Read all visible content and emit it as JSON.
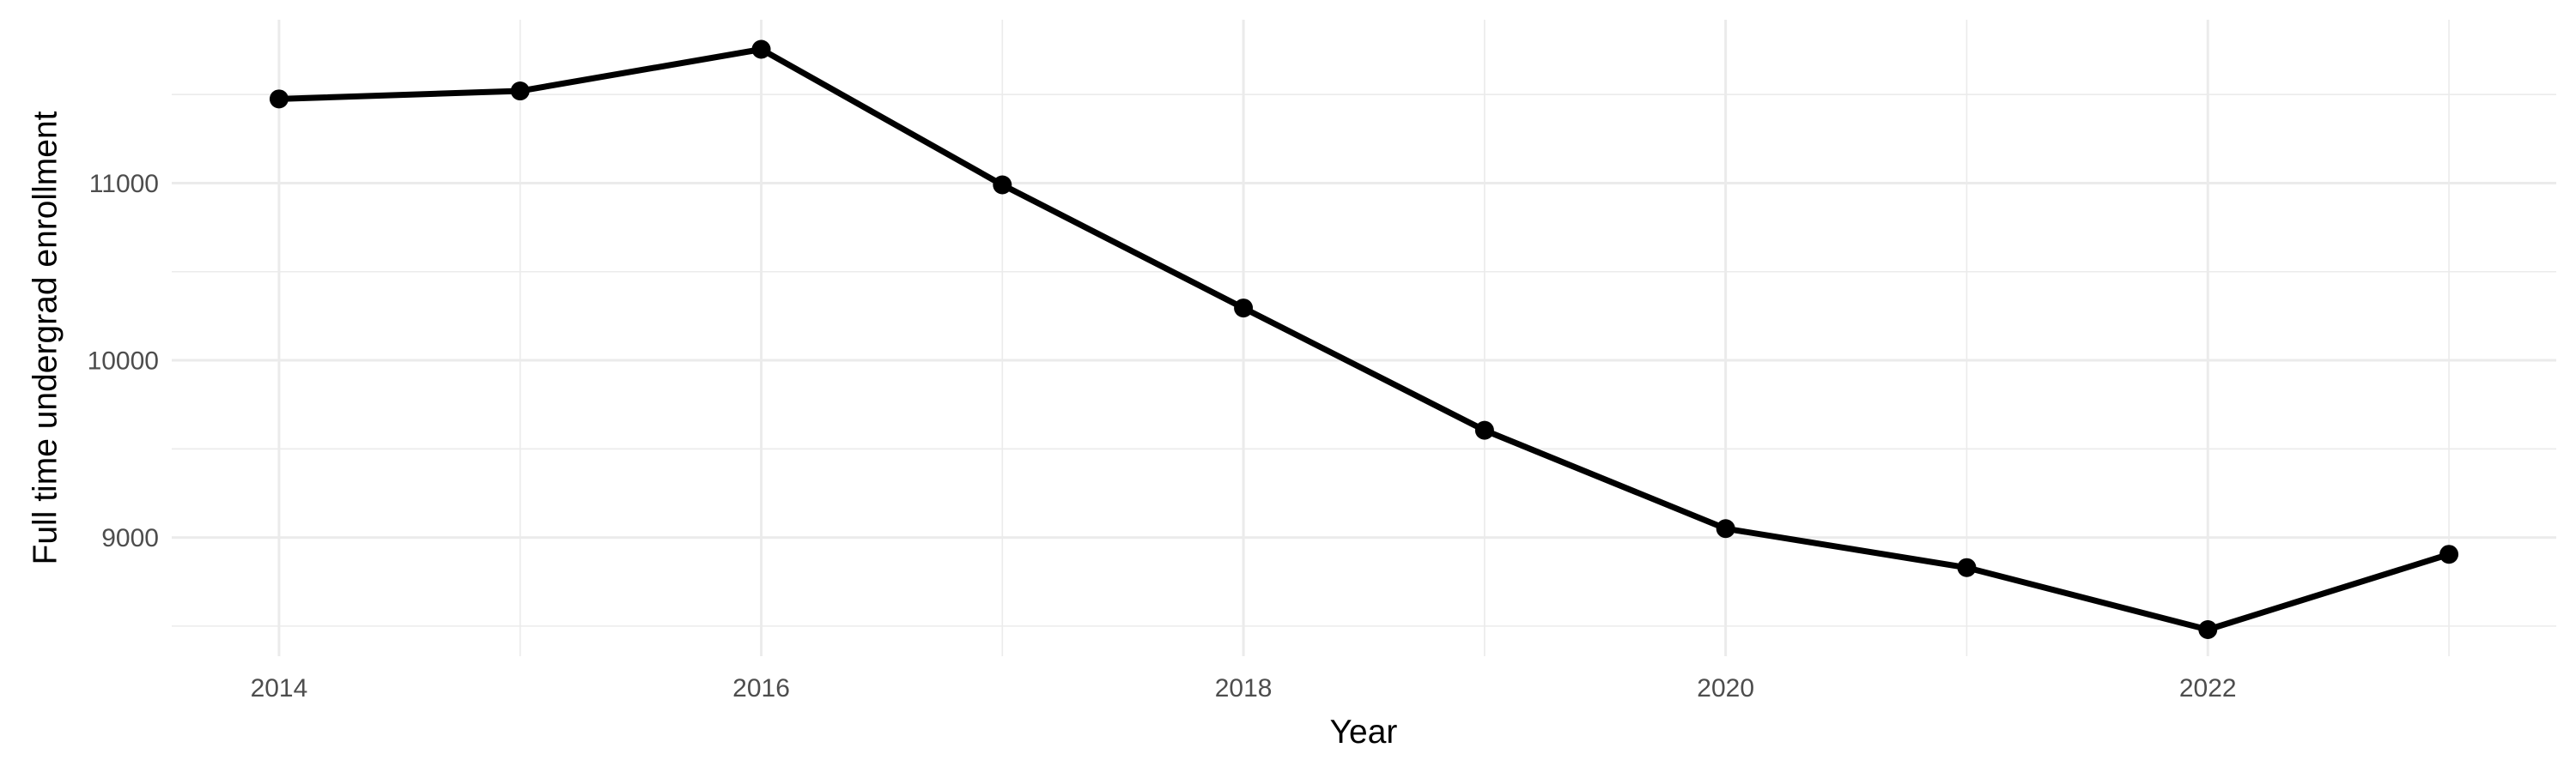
{
  "chart_data": {
    "type": "line",
    "title": "",
    "xlabel": "Year",
    "ylabel": "Full time undergrad enrollment",
    "x": [
      2014,
      2015,
      2016,
      2017,
      2018,
      2019,
      2020,
      2021,
      2022,
      2023
    ],
    "series": [
      {
        "name": "Full time undergrad enrollment",
        "values": [
          11475,
          11520,
          11755,
          10990,
          10295,
          9605,
          9050,
          8830,
          8480,
          8905
        ]
      }
    ],
    "x_ticks_major": [
      2014,
      2016,
      2018,
      2020,
      2022
    ],
    "x_gridlines_minor": [
      2015,
      2017,
      2019,
      2021,
      2023
    ],
    "y_ticks_major": [
      9000,
      10000,
      11000
    ],
    "y_gridlines_minor": [
      8500,
      9500,
      10500,
      11500
    ],
    "xlim": [
      2013.555,
      2023.445
    ],
    "ylim": [
      8330,
      11922
    ],
    "grid": "on",
    "legend": "none",
    "colors": {
      "line": "#000000",
      "point": "#000000",
      "grid_major": "#ebebeb",
      "grid_minor": "#ebebeb",
      "tick_label": "#4d4d4d",
      "axis_title": "#000000",
      "background": "#ffffff"
    }
  }
}
